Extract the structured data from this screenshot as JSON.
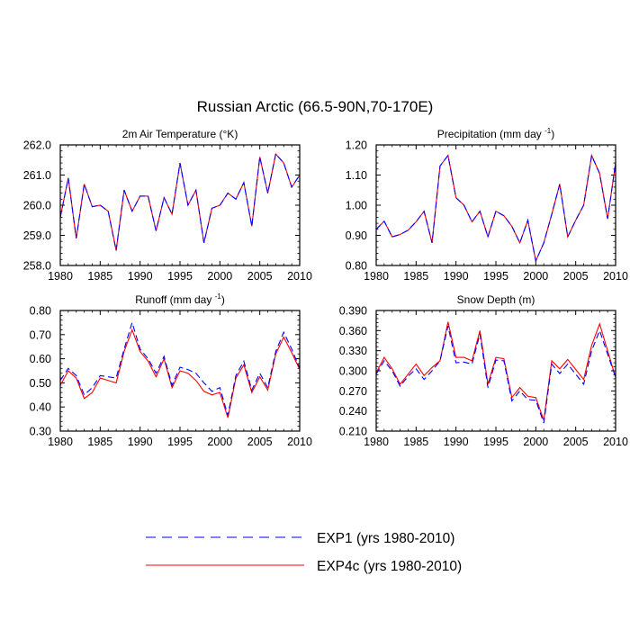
{
  "figure": {
    "title": "Russian Arctic (66.5-90N,70-170E)"
  },
  "legend": {
    "items": [
      {
        "name": "EXP1 (yrs 1980-2010)",
        "color": "#0000ff",
        "style": "dashed"
      },
      {
        "name": "EXP4c (yrs 1980-2010)",
        "color": "#ff0000",
        "style": "solid"
      }
    ]
  },
  "chart_data": [
    {
      "type": "line",
      "title": "2m Air Temperature",
      "title_unit": "(°K)",
      "x": [
        1980,
        1981,
        1982,
        1983,
        1984,
        1985,
        1986,
        1987,
        1988,
        1989,
        1990,
        1991,
        1992,
        1993,
        1994,
        1995,
        1996,
        1997,
        1998,
        1999,
        2000,
        2001,
        2002,
        2003,
        2004,
        2005,
        2006,
        2007,
        2008,
        2009,
        2010
      ],
      "xlim": [
        1980,
        2010
      ],
      "xticks": [
        "1980",
        "1985",
        "1990",
        "1995",
        "2000",
        "2005",
        "2010"
      ],
      "ylim": [
        258.0,
        262.0
      ],
      "yticks": [
        "258.0",
        "259.0",
        "260.0",
        "261.0",
        "262.0"
      ],
      "series": [
        {
          "name": "EXP1 (yrs 1980-2010)",
          "values": [
            259.6,
            260.9,
            258.9,
            260.7,
            259.95,
            260.0,
            259.8,
            258.5,
            260.5,
            259.8,
            260.3,
            260.3,
            259.15,
            260.25,
            259.7,
            261.4,
            260.0,
            260.5,
            258.75,
            259.9,
            260.0,
            260.4,
            260.2,
            260.75,
            259.3,
            261.6,
            260.4,
            261.7,
            261.4,
            260.6,
            261.0
          ]
        },
        {
          "name": "EXP4c (yrs 1980-2010)",
          "values": [
            259.6,
            260.9,
            258.9,
            260.7,
            259.95,
            260.0,
            259.8,
            258.5,
            260.5,
            259.8,
            260.3,
            260.3,
            259.15,
            260.25,
            259.7,
            261.4,
            260.0,
            260.5,
            258.75,
            259.9,
            260.0,
            260.4,
            260.2,
            260.75,
            259.3,
            261.6,
            260.4,
            261.7,
            261.4,
            260.6,
            261.0
          ]
        }
      ]
    },
    {
      "type": "line",
      "title": "Precipitation",
      "title_unit": "(mm day",
      "title_sup": "-1",
      "title_close": ")",
      "x": [
        1980,
        1981,
        1982,
        1983,
        1984,
        1985,
        1986,
        1987,
        1988,
        1989,
        1990,
        1991,
        1992,
        1993,
        1994,
        1995,
        1996,
        1997,
        1998,
        1999,
        2000,
        2001,
        2002,
        2003,
        2004,
        2005,
        2006,
        2007,
        2008,
        2009,
        2010
      ],
      "xlim": [
        1980,
        2010
      ],
      "xticks": [
        "1980",
        "1985",
        "1990",
        "1995",
        "2000",
        "2005",
        "2010"
      ],
      "ylim": [
        0.8,
        1.2
      ],
      "yticks": [
        "0.80",
        "0.90",
        "1.00",
        "1.10",
        "1.20"
      ],
      "series": [
        {
          "name": "EXP1 (yrs 1980-2010)",
          "values": [
            0.92,
            0.947,
            0.895,
            0.903,
            0.917,
            0.945,
            0.98,
            0.875,
            1.13,
            1.165,
            1.025,
            1.0,
            0.945,
            0.98,
            0.895,
            0.98,
            0.965,
            0.93,
            0.875,
            0.95,
            0.815,
            0.875,
            0.97,
            1.07,
            0.895,
            0.95,
            1.0,
            1.165,
            1.105,
            0.955,
            1.14
          ]
        },
        {
          "name": "EXP4c (yrs 1980-2010)",
          "values": [
            0.92,
            0.947,
            0.895,
            0.903,
            0.917,
            0.945,
            0.98,
            0.875,
            1.13,
            1.165,
            1.025,
            1.0,
            0.945,
            0.98,
            0.895,
            0.98,
            0.965,
            0.93,
            0.875,
            0.95,
            0.815,
            0.875,
            0.97,
            1.07,
            0.895,
            0.95,
            1.0,
            1.165,
            1.105,
            0.955,
            1.14
          ]
        }
      ]
    },
    {
      "type": "line",
      "title": "Runoff",
      "title_unit": "(mm day",
      "title_sup": "-1",
      "title_close": ")",
      "x": [
        1980,
        1981,
        1982,
        1983,
        1984,
        1985,
        1986,
        1987,
        1988,
        1989,
        1990,
        1991,
        1992,
        1993,
        1994,
        1995,
        1996,
        1997,
        1998,
        1999,
        2000,
        2001,
        2002,
        2003,
        2004,
        2005,
        2006,
        2007,
        2008,
        2009,
        2010
      ],
      "xlim": [
        1980,
        2010
      ],
      "xticks": [
        "1980",
        "1985",
        "1990",
        "1995",
        "2000",
        "2005",
        "2010"
      ],
      "ylim": [
        0.3,
        0.8
      ],
      "yticks": [
        "0.30",
        "0.40",
        "0.50",
        "0.60",
        "0.70",
        "0.80"
      ],
      "series": [
        {
          "name": "EXP1 (yrs 1980-2010)",
          "values": [
            0.51,
            0.56,
            0.53,
            0.45,
            0.48,
            0.53,
            0.525,
            0.52,
            0.64,
            0.75,
            0.64,
            0.6,
            0.54,
            0.61,
            0.49,
            0.565,
            0.555,
            0.54,
            0.5,
            0.465,
            0.48,
            0.365,
            0.53,
            0.59,
            0.47,
            0.54,
            0.48,
            0.63,
            0.71,
            0.64,
            0.56
          ]
        },
        {
          "name": "EXP4c (yrs 1980-2010)",
          "values": [
            0.49,
            0.55,
            0.52,
            0.435,
            0.46,
            0.52,
            0.51,
            0.5,
            0.63,
            0.72,
            0.63,
            0.59,
            0.525,
            0.6,
            0.48,
            0.55,
            0.54,
            0.51,
            0.465,
            0.45,
            0.46,
            0.355,
            0.52,
            0.575,
            0.46,
            0.525,
            0.47,
            0.62,
            0.69,
            0.625,
            0.555
          ]
        }
      ]
    },
    {
      "type": "line",
      "title": "Snow Depth",
      "title_unit": "(m)",
      "x": [
        1980,
        1981,
        1982,
        1983,
        1984,
        1985,
        1986,
        1987,
        1988,
        1989,
        1990,
        1991,
        1992,
        1993,
        1994,
        1995,
        1996,
        1997,
        1998,
        1999,
        2000,
        2001,
        2002,
        2003,
        2004,
        2005,
        2006,
        2007,
        2008,
        2009,
        2010
      ],
      "xlim": [
        1980,
        2010
      ],
      "xticks": [
        "1980",
        "1985",
        "1990",
        "1995",
        "2000",
        "2005",
        "2010"
      ],
      "ylim": [
        0.21,
        0.39
      ],
      "yticks": [
        "0.210",
        "0.240",
        "0.270",
        "0.300",
        "0.330",
        "0.360",
        "0.390"
      ],
      "series": [
        {
          "name": "EXP1 (yrs 1980-2010)",
          "values": [
            0.295,
            0.315,
            0.3,
            0.277,
            0.292,
            0.303,
            0.287,
            0.3,
            0.315,
            0.367,
            0.312,
            0.313,
            0.31,
            0.355,
            0.275,
            0.316,
            0.315,
            0.255,
            0.27,
            0.257,
            0.256,
            0.222,
            0.31,
            0.296,
            0.31,
            0.295,
            0.28,
            0.33,
            0.36,
            0.325,
            0.29
          ]
        },
        {
          "name": "EXP4c (yrs 1980-2010)",
          "values": [
            0.297,
            0.32,
            0.303,
            0.28,
            0.295,
            0.31,
            0.293,
            0.305,
            0.315,
            0.373,
            0.32,
            0.32,
            0.315,
            0.36,
            0.28,
            0.32,
            0.318,
            0.26,
            0.275,
            0.262,
            0.26,
            0.226,
            0.315,
            0.303,
            0.317,
            0.302,
            0.287,
            0.338,
            0.37,
            0.33,
            0.29
          ]
        }
      ]
    }
  ]
}
